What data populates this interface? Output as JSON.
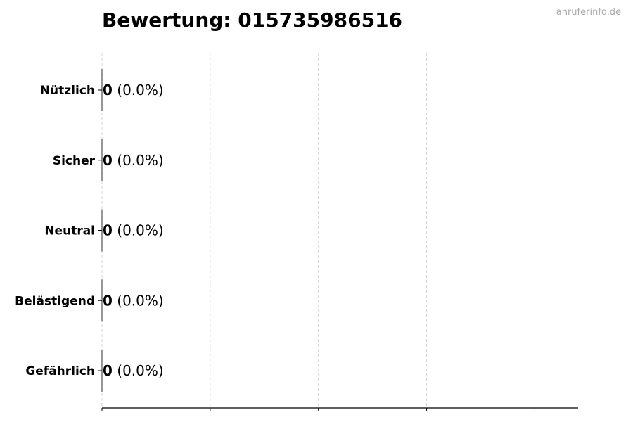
{
  "watermark": "anruferinfo.de",
  "chart_data": {
    "type": "bar",
    "orientation": "horizontal",
    "title": "Bewertung: 015735986516",
    "xlabel": "",
    "ylabel": "",
    "categories": [
      "Nützlich",
      "Sicher",
      "Neutral",
      "Belästigend",
      "Gefährlich"
    ],
    "values": [
      0,
      0,
      0,
      0,
      0
    ],
    "data_labels": [
      {
        "count": "0",
        "percent": "(0.0%)"
      },
      {
        "count": "0",
        "percent": "(0.0%)"
      },
      {
        "count": "0",
        "percent": "(0.0%)"
      },
      {
        "count": "0",
        "percent": "(0.0%)"
      },
      {
        "count": "0",
        "percent": "(0.0%)"
      }
    ],
    "xlim": [
      0,
      4.4
    ],
    "xticks": [
      0,
      1,
      2,
      3,
      4
    ],
    "xtick_labels_shown": false,
    "grid": "x, dashed",
    "legend": "none",
    "colors": {
      "bar_edge": "#000000",
      "grid": "#cccccc",
      "watermark": "#aaaaaa"
    }
  }
}
